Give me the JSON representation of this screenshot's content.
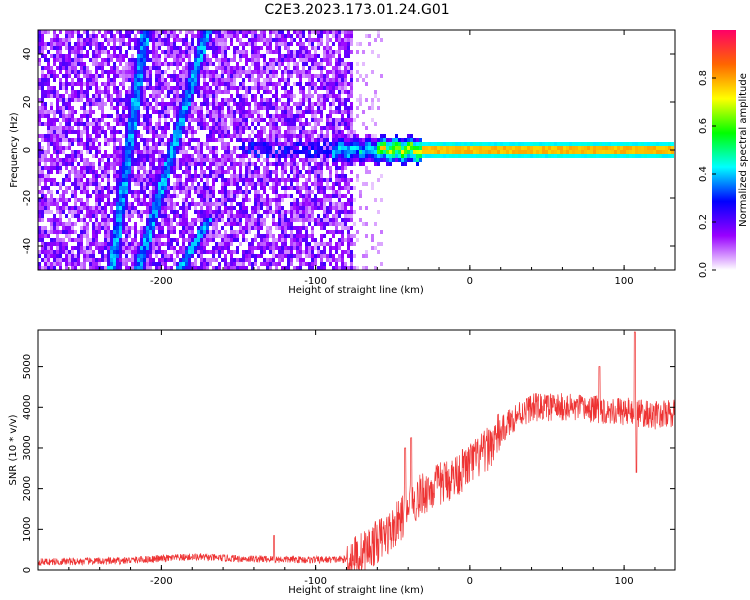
{
  "figure_title": "C2E3.2023.173.01.24.G01",
  "chart_data": [
    {
      "type": "heatmap",
      "title": "",
      "xlabel": "Height of straight line (km)",
      "ylabel": "Frequency (Hz)",
      "xlim": [
        -280,
        133
      ],
      "ylim": [
        -50,
        50
      ],
      "xticks": [
        -200,
        -100,
        0,
        100
      ],
      "xtick_labels": [
        "-200",
        "-100",
        "0",
        "100"
      ],
      "yticks": [
        -40,
        -20,
        0,
        20,
        40
      ],
      "ytick_labels": [
        "-40",
        "-20",
        "0",
        "20",
        "40"
      ],
      "colorbar": {
        "label": "Normalized spectral amplitude",
        "range": [
          0,
          1
        ],
        "ticks": [
          0.0,
          0.2,
          0.4,
          0.6,
          0.8
        ],
        "tick_labels": [
          "0.0",
          "0.2",
          "0.4",
          "0.6",
          "0.8"
        ],
        "colors": [
          "#ffffff",
          "#9900ff",
          "#0000ff",
          "#00ffff",
          "#00ff00",
          "#ffff00",
          "#ff6600",
          "#ff0066"
        ]
      },
      "features": {
        "noise_region_x": [
          -280,
          -75
        ],
        "sparse_noise_x": [
          -75,
          -55
        ],
        "signal_center_frequency": 0,
        "signal_x": [
          -90,
          133
        ],
        "signal_peak_amplitude_x": [
          -30,
          133
        ],
        "diagonal_streaks": [
          {
            "x": [
              -232,
              -210
            ],
            "y": [
              -50,
              50
            ]
          },
          {
            "x": [
              -215,
              -170
            ],
            "y": [
              -50,
              50
            ]
          },
          {
            "x": [
              -188,
              -168
            ],
            "y": [
              -50,
              -28
            ]
          }
        ]
      }
    },
    {
      "type": "line",
      "title": "",
      "xlabel": "Height of straight line (km)",
      "ylabel": "SNR (10 * v/v)",
      "xlim": [
        -280,
        133
      ],
      "ylim": [
        0,
        5900
      ],
      "xticks": [
        -200,
        -100,
        0,
        100
      ],
      "xtick_labels": [
        "-200",
        "-100",
        "0",
        "100"
      ],
      "yticks": [
        0,
        1000,
        2000,
        3000,
        4000,
        5000
      ],
      "ytick_labels": [
        "0",
        "1000",
        "2000",
        "3000",
        "4000",
        "5000"
      ],
      "color": "#ee3333",
      "series": [
        {
          "trend_x": [
            -280,
            -230,
            -200,
            -180,
            -150,
            -120,
            -100,
            -80,
            -70,
            -60,
            -50,
            -40,
            -30,
            -20,
            -10,
            0,
            10,
            20,
            30,
            40,
            60,
            80,
            100,
            120,
            133
          ],
          "trend_y": [
            200,
            220,
            280,
            320,
            280,
            260,
            250,
            260,
            400,
            700,
            1000,
            1500,
            1900,
            2100,
            2300,
            2600,
            2900,
            3400,
            3800,
            4000,
            4000,
            3950,
            3900,
            3800,
            3850
          ],
          "spikes": [
            {
              "x": -127,
              "y": 850
            },
            {
              "x": -42,
              "y": 3000
            },
            {
              "x": -38,
              "y": 3250
            },
            {
              "x": 84,
              "y": 5000
            },
            {
              "x": 107,
              "y": 5850
            },
            {
              "x": 108,
              "y": 2400
            }
          ]
        }
      ]
    }
  ]
}
